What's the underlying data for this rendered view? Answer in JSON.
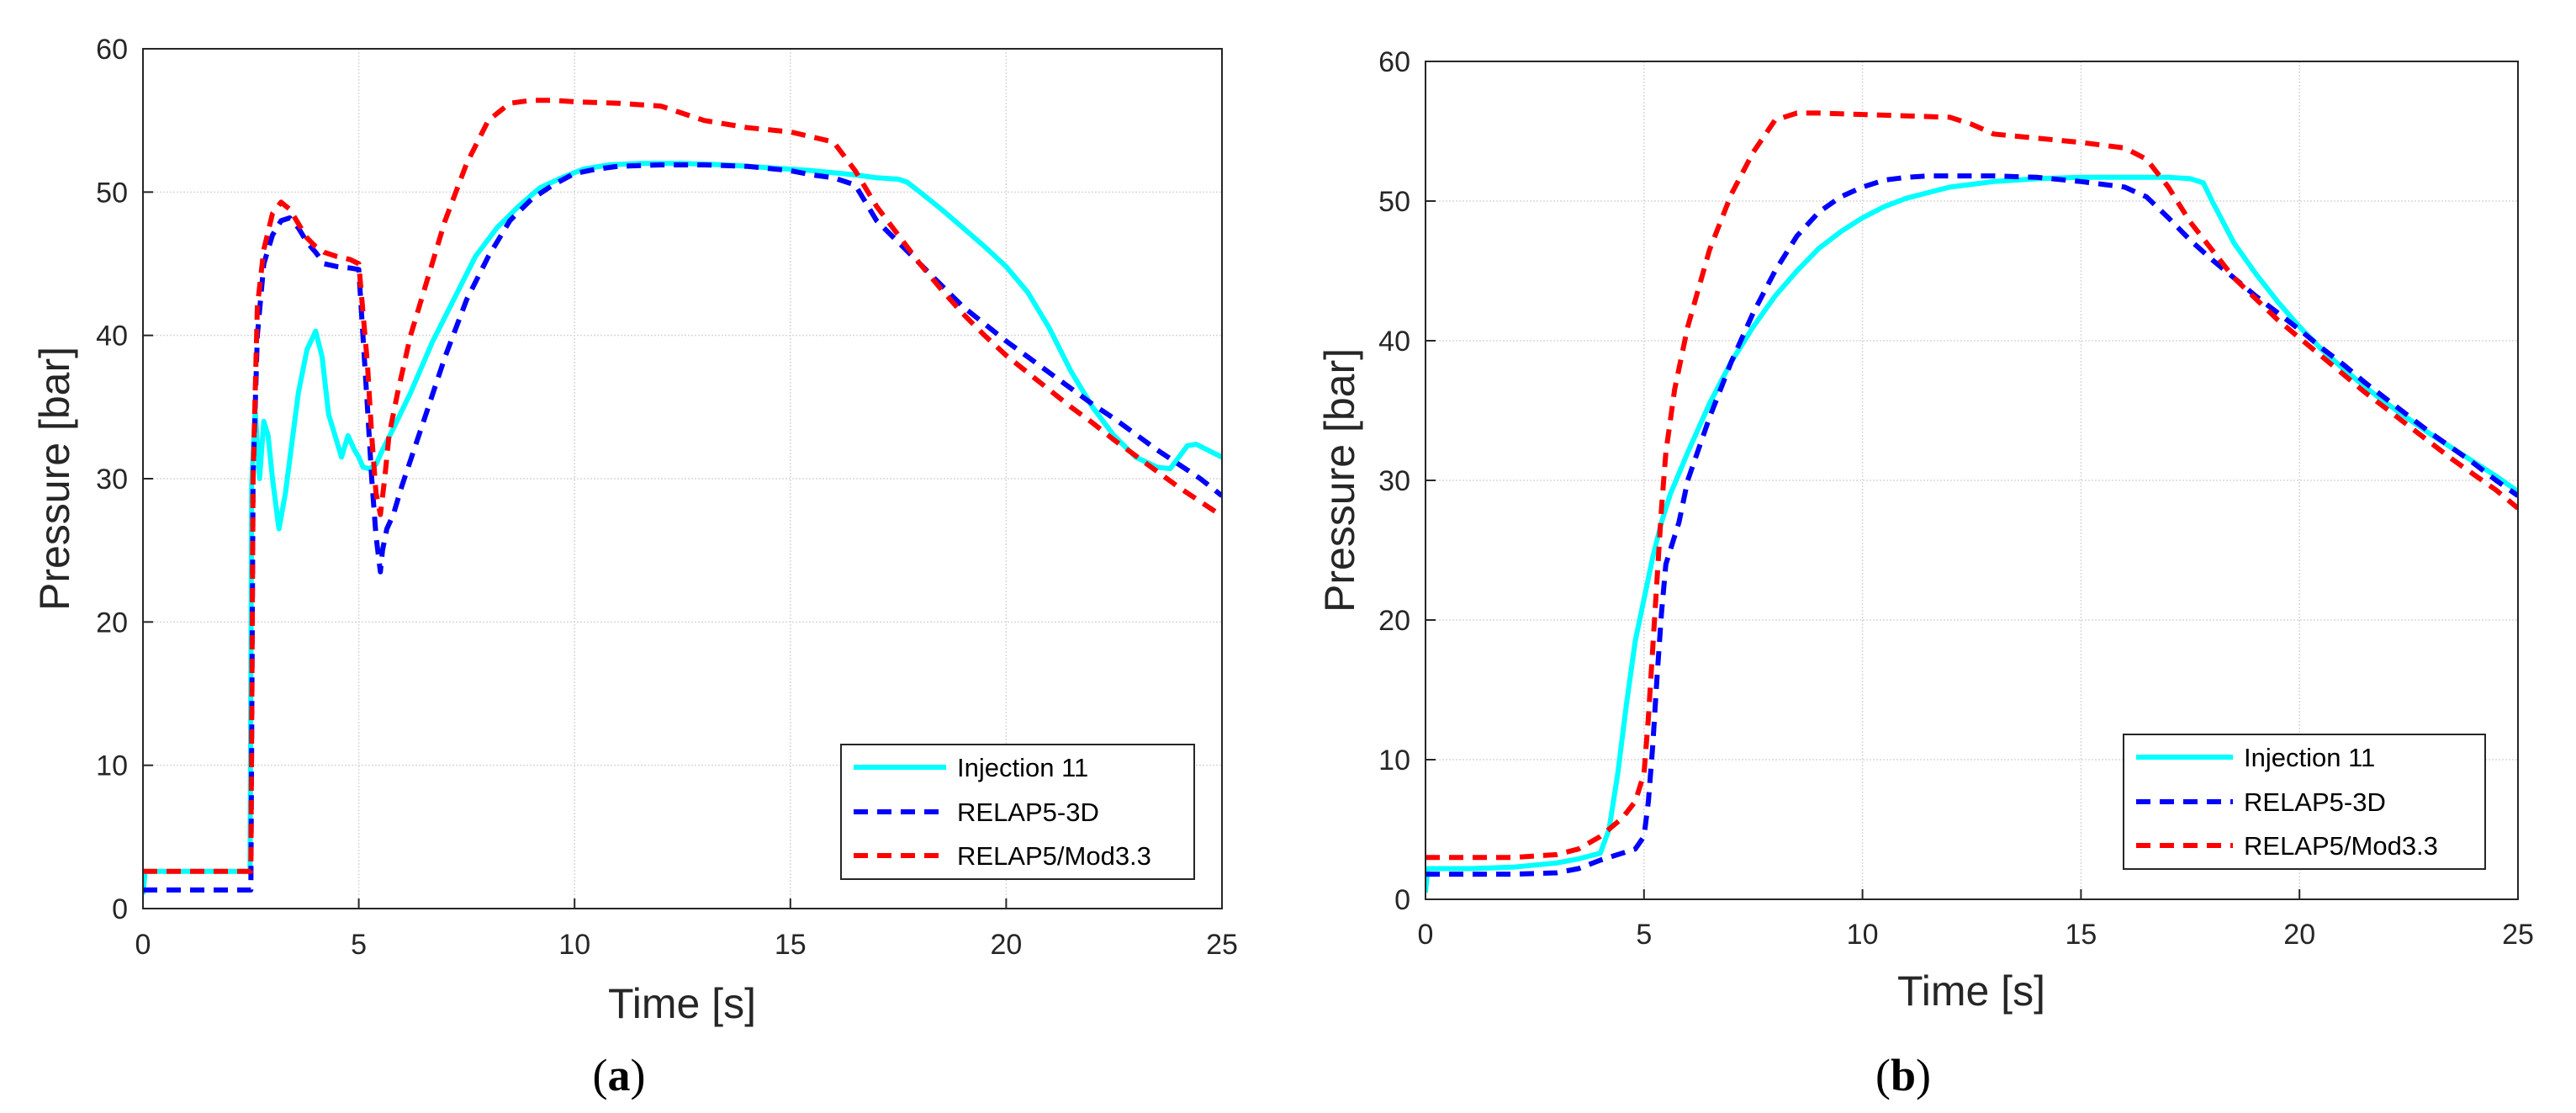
{
  "colors": {
    "injection": "#00ffff",
    "relap3d": "#0000ff",
    "mod33": "#ff0000",
    "grid": "#d9d9d9",
    "axis": "#262626"
  },
  "chart_data": [
    {
      "type": "line",
      "panel_label": {
        "open": "(",
        "letter": "a",
        "close": ")"
      },
      "title": "",
      "xlabel": "Time [s]",
      "ylabel": "Pressure [bar]",
      "xlim": [
        0,
        25
      ],
      "ylim": [
        0,
        60
      ],
      "xticks": [
        "0",
        "5",
        "10",
        "15",
        "20",
        "25"
      ],
      "yticks": [
        "0",
        "10",
        "20",
        "30",
        "40",
        "50",
        "60"
      ],
      "grid": true,
      "legend_position": "bottom-right",
      "series": [
        {
          "name": "Injection 11",
          "style": "solid",
          "x": [
            0,
            0.05,
            2.48,
            2.52,
            2.6,
            2.7,
            2.8,
            2.9,
            3.0,
            3.15,
            3.3,
            3.45,
            3.6,
            3.8,
            4.0,
            4.15,
            4.3,
            4.45,
            4.6,
            4.75,
            4.9,
            5.0,
            5.1,
            5.25,
            5.4,
            5.55,
            5.8,
            6.2,
            6.7,
            7.2,
            7.7,
            8.2,
            8.7,
            9.2,
            9.7,
            10.2,
            10.8,
            11.5,
            12.5,
            13.5,
            14.5,
            15.5,
            16.5,
            17.0,
            17.5,
            17.7,
            18.0,
            18.5,
            19.0,
            19.5,
            20.0,
            20.5,
            21.0,
            21.5,
            22.0,
            22.5,
            23.0,
            23.5,
            23.8,
            24.0,
            24.2,
            24.4,
            24.6,
            24.8,
            25.0
          ],
          "values": [
            1.0,
            2.6,
            2.6,
            29.5,
            34.8,
            30.0,
            34.0,
            33.0,
            30.0,
            26.5,
            29.0,
            32.5,
            36.0,
            39.0,
            40.3,
            38.5,
            34.5,
            33.0,
            31.5,
            33.0,
            32.0,
            31.5,
            30.8,
            30.7,
            31.0,
            32.0,
            33.5,
            36.0,
            39.5,
            42.5,
            45.5,
            47.5,
            49.0,
            50.3,
            51.0,
            51.6,
            51.9,
            52.0,
            52.0,
            51.9,
            51.7,
            51.5,
            51.2,
            51.0,
            50.9,
            50.7,
            50.0,
            48.8,
            47.5,
            46.2,
            44.8,
            43.0,
            40.5,
            37.5,
            35.0,
            33.0,
            31.5,
            30.8,
            30.7,
            31.5,
            32.3,
            32.4,
            32.1,
            31.8,
            31.5
          ]
        },
        {
          "name": "RELAP5-3D",
          "style": "dashed",
          "x": [
            0,
            2.5,
            2.55,
            2.65,
            2.8,
            3.0,
            3.2,
            3.4,
            3.6,
            3.8,
            4.0,
            4.2,
            4.5,
            4.8,
            5.0,
            5.2,
            5.3,
            5.4,
            5.5,
            5.55,
            5.65,
            5.8,
            6.0,
            6.5,
            7.0,
            7.5,
            8.0,
            8.5,
            9.0,
            9.5,
            10.0,
            10.5,
            11.0,
            12.0,
            13.0,
            14.0,
            15.0,
            15.5,
            16.0,
            16.5,
            17.0,
            17.5,
            18.0,
            18.5,
            19.0,
            19.5,
            20.0,
            20.5,
            21.0,
            21.5,
            22.0,
            22.5,
            23.0,
            23.5,
            24.0,
            24.5,
            25.0
          ],
          "values": [
            1.3,
            1.3,
            30.0,
            40.0,
            45.0,
            47.0,
            48.0,
            48.2,
            47.5,
            46.5,
            45.8,
            45.0,
            44.8,
            44.7,
            44.6,
            35.0,
            30.0,
            26.0,
            23.5,
            25.0,
            26.5,
            27.5,
            29.5,
            34.0,
            38.5,
            42.5,
            45.5,
            48.0,
            49.5,
            50.5,
            51.3,
            51.6,
            51.8,
            51.9,
            51.9,
            51.8,
            51.5,
            51.2,
            51.0,
            50.5,
            48.0,
            46.5,
            45.0,
            43.5,
            42.0,
            40.8,
            39.6,
            38.5,
            37.4,
            36.3,
            35.2,
            34.2,
            33.1,
            32.0,
            31.0,
            30.0,
            28.8
          ]
        },
        {
          "name": "RELAP5/Mod3.3",
          "style": "dashed",
          "x": [
            0,
            2.5,
            2.55,
            2.65,
            2.8,
            3.0,
            3.2,
            3.4,
            3.6,
            3.8,
            4.0,
            4.2,
            4.5,
            4.8,
            5.0,
            5.2,
            5.3,
            5.4,
            5.5,
            5.6,
            5.7,
            5.9,
            6.2,
            6.6,
            7.0,
            7.5,
            8.0,
            8.5,
            9.0,
            9.5,
            10.0,
            11.0,
            12.0,
            13.0,
            14.0,
            15.0,
            16.0,
            16.5,
            17.0,
            17.5,
            18.0,
            18.5,
            19.0,
            19.5,
            20.0,
            20.5,
            21.0,
            21.5,
            22.0,
            22.5,
            23.0,
            23.5,
            24.0,
            24.5,
            25.0
          ],
          "values": [
            2.6,
            2.6,
            30.0,
            42.0,
            46.0,
            48.5,
            49.3,
            48.8,
            47.8,
            46.8,
            46.2,
            45.8,
            45.5,
            45.3,
            45.0,
            38.0,
            33.0,
            29.0,
            27.5,
            30.0,
            33.0,
            36.0,
            40.0,
            44.0,
            48.0,
            52.0,
            55.0,
            56.2,
            56.4,
            56.4,
            56.3,
            56.2,
            56.0,
            55.0,
            54.5,
            54.2,
            53.5,
            51.5,
            49.0,
            47.0,
            45.0,
            43.2,
            41.5,
            40.0,
            38.6,
            37.4,
            36.2,
            35.0,
            33.9,
            32.7,
            31.6,
            30.5,
            29.4,
            28.4,
            27.4
          ]
        }
      ]
    },
    {
      "type": "line",
      "panel_label": {
        "open": "(",
        "letter": "b",
        "close": ")"
      },
      "title": "",
      "xlabel": "Time [s]",
      "ylabel": "Pressure [bar]",
      "xlim": [
        0,
        25
      ],
      "ylim": [
        0,
        60
      ],
      "xticks": [
        "0",
        "5",
        "10",
        "15",
        "20",
        "25"
      ],
      "yticks": [
        "0",
        "10",
        "20",
        "30",
        "40",
        "50",
        "60"
      ],
      "grid": true,
      "legend_position": "bottom-right",
      "series": [
        {
          "name": "Injection 11",
          "style": "solid",
          "x": [
            0,
            0.05,
            1.0,
            2.0,
            3.0,
            3.5,
            4.0,
            4.2,
            4.4,
            4.6,
            4.8,
            5.0,
            5.2,
            5.4,
            5.6,
            5.8,
            6.0,
            6.5,
            7.0,
            7.5,
            8.0,
            8.5,
            9.0,
            9.5,
            10.0,
            10.5,
            11.0,
            11.5,
            12.0,
            12.5,
            13.0,
            14.0,
            15.0,
            16.0,
            17.0,
            17.5,
            17.8,
            18.0,
            18.5,
            19.0,
            19.5,
            20.0,
            20.5,
            21.0,
            21.5,
            22.0,
            22.5,
            23.0,
            23.5,
            24.0,
            24.5,
            25.0
          ],
          "values": [
            0.5,
            2.2,
            2.2,
            2.3,
            2.6,
            2.9,
            3.3,
            5.0,
            9.0,
            14.0,
            18.5,
            21.5,
            24.5,
            27.0,
            29.0,
            30.5,
            32.0,
            35.5,
            38.5,
            41.0,
            43.2,
            45.0,
            46.6,
            47.8,
            48.8,
            49.6,
            50.2,
            50.6,
            51.0,
            51.2,
            51.4,
            51.6,
            51.7,
            51.7,
            51.7,
            51.6,
            51.3,
            50.0,
            47.0,
            44.8,
            42.8,
            41.0,
            39.4,
            38.0,
            36.7,
            35.5,
            34.4,
            33.3,
            32.3,
            31.3,
            30.3,
            29.2
          ]
        },
        {
          "name": "RELAP5-3D",
          "style": "dashed",
          "x": [
            0,
            1.0,
            2.0,
            3.0,
            3.5,
            4.0,
            4.5,
            4.8,
            5.0,
            5.1,
            5.2,
            5.3,
            5.4,
            5.5,
            5.6,
            5.8,
            6.0,
            6.5,
            7.0,
            7.5,
            8.0,
            8.5,
            9.0,
            9.5,
            10.0,
            10.5,
            11.0,
            11.5,
            12.0,
            13.0,
            14.0,
            15.0,
            15.5,
            16.0,
            16.5,
            17.0,
            17.5,
            18.0,
            18.5,
            19.0,
            19.5,
            20.0,
            20.5,
            21.0,
            21.5,
            22.0,
            22.5,
            23.0,
            23.5,
            24.0,
            24.5,
            25.0
          ],
          "values": [
            1.8,
            1.8,
            1.8,
            1.9,
            2.2,
            2.8,
            3.3,
            3.6,
            4.5,
            7.0,
            11.0,
            16.0,
            20.5,
            24.0,
            25.0,
            27.0,
            30.0,
            34.5,
            38.5,
            42.0,
            45.0,
            47.5,
            49.2,
            50.3,
            51.0,
            51.5,
            51.7,
            51.8,
            51.8,
            51.8,
            51.7,
            51.4,
            51.2,
            51.0,
            50.3,
            48.8,
            47.2,
            45.8,
            44.5,
            43.2,
            42.0,
            40.8,
            39.5,
            38.3,
            37.0,
            35.8,
            34.6,
            33.4,
            32.3,
            31.2,
            30.0,
            28.9
          ]
        },
        {
          "name": "RELAP5/Mod3.3",
          "style": "dashed",
          "x": [
            0,
            1.0,
            2.0,
            3.0,
            3.5,
            4.0,
            4.5,
            4.8,
            5.0,
            5.1,
            5.2,
            5.3,
            5.4,
            5.5,
            5.7,
            6.0,
            6.5,
            7.0,
            7.5,
            8.0,
            8.5,
            9.0,
            10.0,
            11.0,
            12.0,
            12.5,
            13.0,
            14.0,
            15.0,
            16.0,
            16.5,
            17.0,
            17.5,
            18.0,
            18.5,
            19.0,
            19.5,
            20.0,
            20.5,
            21.0,
            21.5,
            22.0,
            22.5,
            23.0,
            23.5,
            24.0,
            24.5,
            25.0
          ],
          "values": [
            3.0,
            3.0,
            3.0,
            3.2,
            3.6,
            4.5,
            5.8,
            7.0,
            9.0,
            13.0,
            18.0,
            23.0,
            28.0,
            32.0,
            36.5,
            41.0,
            46.5,
            50.5,
            53.5,
            55.8,
            56.3,
            56.3,
            56.2,
            56.1,
            56.0,
            55.5,
            54.8,
            54.5,
            54.2,
            53.8,
            53.0,
            51.0,
            48.5,
            46.5,
            44.5,
            43.0,
            41.5,
            40.2,
            38.9,
            37.6,
            36.3,
            35.1,
            33.9,
            32.7,
            31.5,
            30.4,
            29.3,
            28.0
          ]
        }
      ]
    }
  ]
}
